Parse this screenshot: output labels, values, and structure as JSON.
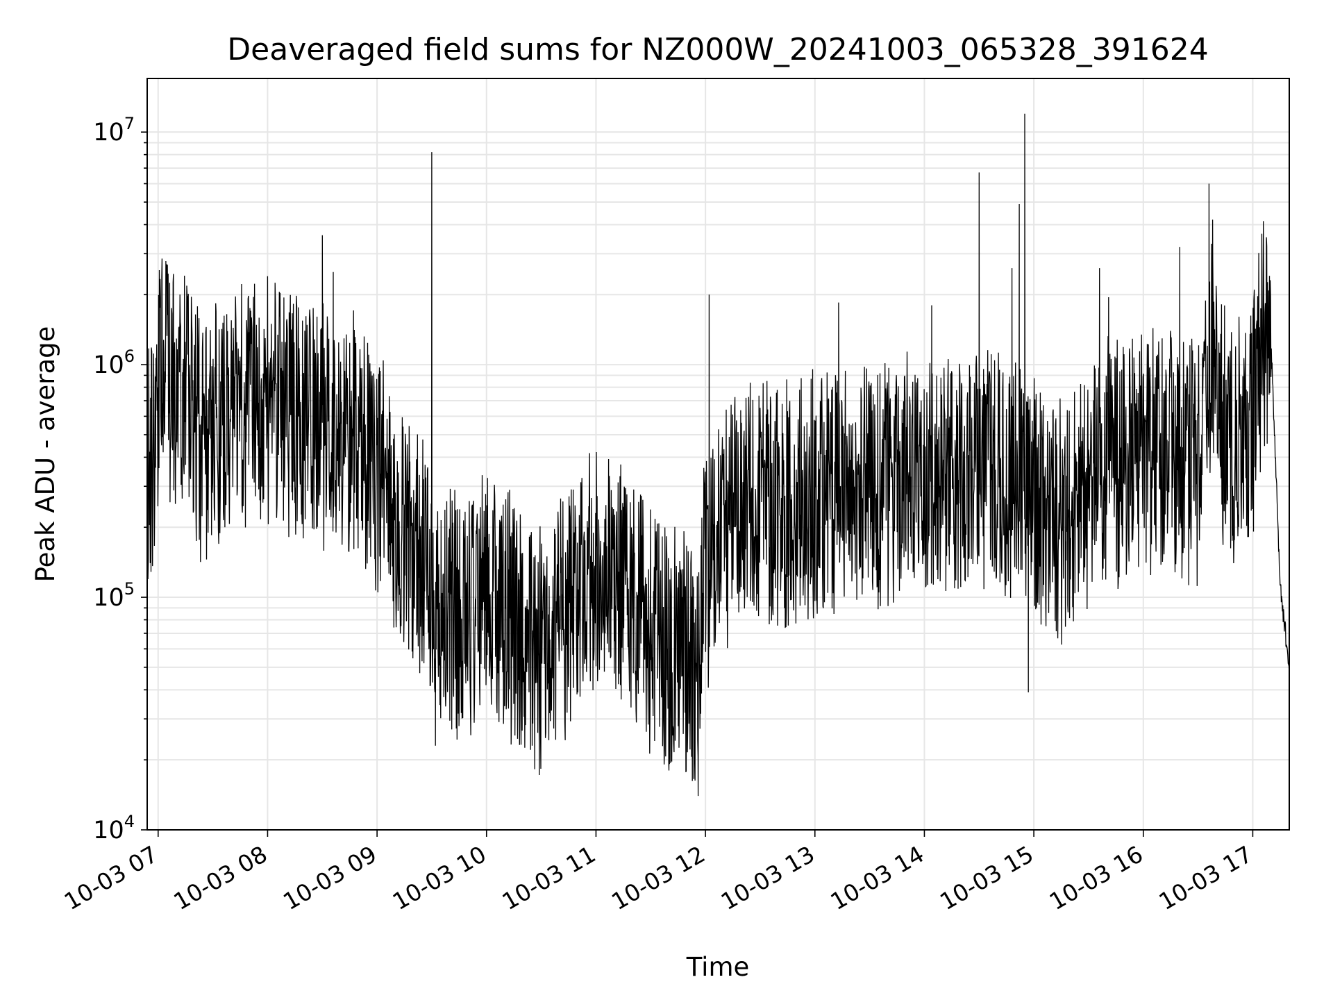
{
  "chart_data": {
    "type": "line",
    "title": "Deaveraged field sums for NZ000W_20241003_065328_391624",
    "xlabel": "Time",
    "ylabel": "Peak ADU - average",
    "yscale": "log",
    "ylim": [
      10000,
      17000000
    ],
    "xlim": [
      "2024-10-03T06:54",
      "2024-10-03T17:20"
    ],
    "grid": true,
    "line_color": "#000000",
    "grid_color": "#e6e6e6",
    "x_ticks": [
      "10-03 07",
      "10-03 08",
      "10-03 09",
      "10-03 10",
      "10-03 11",
      "10-03 12",
      "10-03 13",
      "10-03 14",
      "10-03 15",
      "10-03 16",
      "10-03 17"
    ],
    "y_ticks": [
      {
        "value": 10000,
        "base": "10",
        "exp": "4"
      },
      {
        "value": 100000,
        "base": "10",
        "exp": "5"
      },
      {
        "value": 1000000,
        "base": "10",
        "exp": "6"
      },
      {
        "value": 10000000,
        "base": "10",
        "exp": "7"
      }
    ],
    "series": [
      {
        "x": [
          "2024-10-03T06:54",
          "2024-10-03T06:58",
          "2024-10-03T07:02",
          "2024-10-03T07:06",
          "2024-10-03T07:10",
          "2024-10-03T07:14",
          "2024-10-03T07:18",
          "2024-10-03T07:22",
          "2024-10-03T07:26",
          "2024-10-03T07:30",
          "2024-10-03T07:40",
          "2024-10-03T07:50",
          "2024-10-03T08:00",
          "2024-10-03T08:10",
          "2024-10-03T08:20",
          "2024-10-03T08:30",
          "2024-10-03T08:40",
          "2024-10-03T08:50",
          "2024-10-03T09:00",
          "2024-10-03T09:10",
          "2024-10-03T09:20",
          "2024-10-03T09:30",
          "2024-10-03T09:35",
          "2024-10-03T09:40",
          "2024-10-03T09:50",
          "2024-10-03T10:00",
          "2024-10-03T10:10",
          "2024-10-03T10:20",
          "2024-10-03T10:30",
          "2024-10-03T10:40",
          "2024-10-03T10:50",
          "2024-10-03T11:00",
          "2024-10-03T11:10",
          "2024-10-03T11:20",
          "2024-10-03T11:30",
          "2024-10-03T11:40",
          "2024-10-03T11:50",
          "2024-10-03T11:55",
          "2024-10-03T12:00",
          "2024-10-03T12:10",
          "2024-10-03T12:20",
          "2024-10-03T12:30",
          "2024-10-03T12:40",
          "2024-10-03T12:50",
          "2024-10-03T13:00",
          "2024-10-03T13:10",
          "2024-10-03T13:20",
          "2024-10-03T13:30",
          "2024-10-03T13:40",
          "2024-10-03T13:50",
          "2024-10-03T14:00",
          "2024-10-03T14:10",
          "2024-10-03T14:20",
          "2024-10-03T14:30",
          "2024-10-03T14:40",
          "2024-10-03T14:50",
          "2024-10-03T14:55",
          "2024-10-03T15:00",
          "2024-10-03T15:10",
          "2024-10-03T15:20",
          "2024-10-03T15:30",
          "2024-10-03T15:40",
          "2024-10-03T15:50",
          "2024-10-03T16:00",
          "2024-10-03T16:10",
          "2024-10-03T16:20",
          "2024-10-03T16:30",
          "2024-10-03T16:38",
          "2024-10-03T16:45",
          "2024-10-03T16:50",
          "2024-10-03T17:00",
          "2024-10-03T17:05",
          "2024-10-03T17:10",
          "2024-10-03T17:15",
          "2024-10-03T17:20"
        ],
        "values": [
          400000,
          500000,
          1000000,
          900000,
          800000,
          700000,
          600000,
          500000,
          500000,
          550000,
          600000,
          650000,
          700000,
          650000,
          600000,
          550000,
          450000,
          500000,
          350000,
          220000,
          160000,
          120000,
          90000,
          85000,
          80000,
          110000,
          90000,
          70000,
          60000,
          80000,
          100000,
          130000,
          120000,
          90000,
          70000,
          60000,
          55000,
          50000,
          120000,
          200000,
          250000,
          260000,
          250000,
          270000,
          270000,
          280000,
          290000,
          300000,
          320000,
          330000,
          330000,
          330000,
          330000,
          350000,
          360000,
          340000,
          300000,
          250000,
          200000,
          220000,
          280000,
          380000,
          350000,
          400000,
          420000,
          410000,
          380000,
          1200000,
          500000,
          450000,
          600000,
          1200000,
          1300000,
          110000,
          50000
        ],
        "noise": 0.55
      }
    ],
    "spikes": [
      {
        "x": "2024-10-03T07:02",
        "y": 2400000
      },
      {
        "x": "2024-10-03T08:00",
        "y": 2400000
      },
      {
        "x": "2024-10-03T08:30",
        "y": 3600000
      },
      {
        "x": "2024-10-03T08:36",
        "y": 2500000
      },
      {
        "x": "2024-10-03T09:30",
        "y": 8200000
      },
      {
        "x": "2024-10-03T09:32",
        "y": 23000
      },
      {
        "x": "2024-10-03T10:25",
        "y": 23000
      },
      {
        "x": "2024-10-03T11:40",
        "y": 18000
      },
      {
        "x": "2024-10-03T11:56",
        "y": 14000
      },
      {
        "x": "2024-10-03T12:02",
        "y": 2000000
      },
      {
        "x": "2024-10-03T13:13",
        "y": 1850000
      },
      {
        "x": "2024-10-03T14:04",
        "y": 1800000
      },
      {
        "x": "2024-10-03T14:30",
        "y": 6700000
      },
      {
        "x": "2024-10-03T14:48",
        "y": 2600000
      },
      {
        "x": "2024-10-03T14:52",
        "y": 4900000
      },
      {
        "x": "2024-10-03T14:55",
        "y": 12000000
      },
      {
        "x": "2024-10-03T14:57",
        "y": 39000
      },
      {
        "x": "2024-10-03T15:36",
        "y": 2600000
      },
      {
        "x": "2024-10-03T15:41",
        "y": 1950000
      },
      {
        "x": "2024-10-03T16:20",
        "y": 3200000
      },
      {
        "x": "2024-10-03T16:36",
        "y": 6000000
      },
      {
        "x": "2024-10-03T16:38",
        "y": 4200000
      }
    ]
  }
}
